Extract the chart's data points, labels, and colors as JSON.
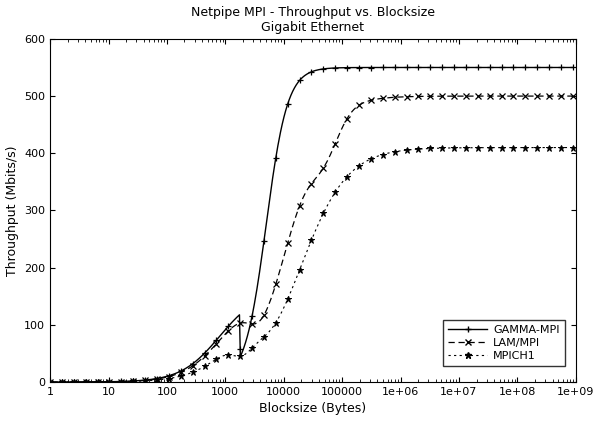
{
  "title_line1": "Netpipe MPI - Throughput vs. Blocksize",
  "title_line2": "Gigabit Ethernet",
  "xlabel": "Blocksize (Bytes)",
  "ylabel": "Throughput (Mbits/s)",
  "ylim": [
    0,
    600
  ],
  "yticks": [
    0,
    100,
    200,
    300,
    400,
    500,
    600
  ],
  "xlim_log": [
    1,
    1000000000.0
  ],
  "legend_labels": [
    "GAMMA-MPI",
    "LAM/MPI",
    "MPICH1"
  ],
  "gamma_plateau": 550,
  "lam_plateau": 500,
  "mpich_plateau": 410,
  "background_color": "#ffffff"
}
